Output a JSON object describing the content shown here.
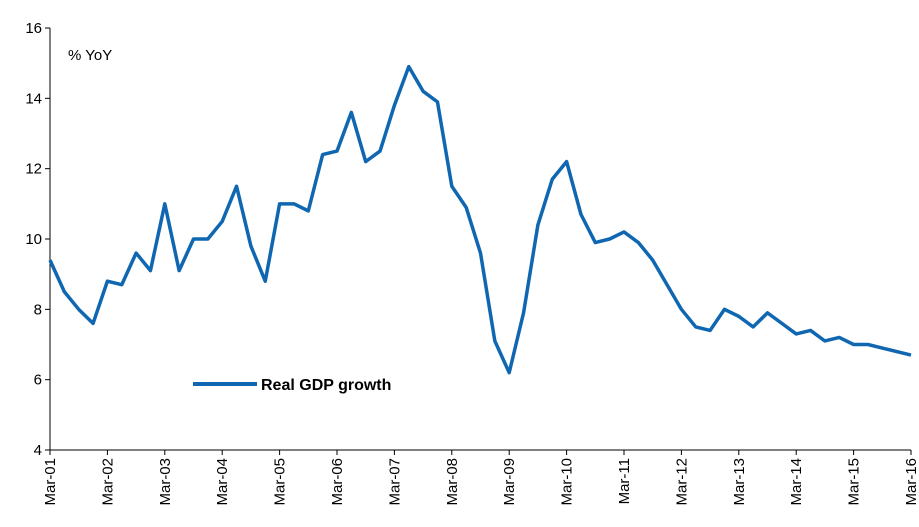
{
  "chart_data": {
    "type": "line",
    "title": "",
    "ylabel": "% YoY",
    "xlabel": "",
    "ylim": [
      4,
      16
    ],
    "yticks": [
      4,
      6,
      8,
      10,
      12,
      14,
      16
    ],
    "xlabels": [
      "Mar-01",
      "Mar-02",
      "Mar-03",
      "Mar-04",
      "Mar-05",
      "Mar-06",
      "Mar-07",
      "Mar-08",
      "Mar-09",
      "Mar-10",
      "Mar-11",
      "Mar-12",
      "Mar-13",
      "Mar-14",
      "Mar-15",
      "Mar-16"
    ],
    "grid": false,
    "legend": "inside, lower-left",
    "series": [
      {
        "name": "Real GDP growth",
        "color": "#0F67B1",
        "x": [
          "Mar-01",
          "Jun-01",
          "Sep-01",
          "Dec-01",
          "Mar-02",
          "Jun-02",
          "Sep-02",
          "Dec-02",
          "Mar-03",
          "Jun-03",
          "Sep-03",
          "Dec-03",
          "Mar-04",
          "Jun-04",
          "Sep-04",
          "Dec-04",
          "Mar-05",
          "Jun-05",
          "Sep-05",
          "Dec-05",
          "Mar-06",
          "Jun-06",
          "Sep-06",
          "Dec-06",
          "Mar-07",
          "Jun-07",
          "Sep-07",
          "Dec-07",
          "Mar-08",
          "Jun-08",
          "Sep-08",
          "Dec-08",
          "Mar-09",
          "Jun-09",
          "Sep-09",
          "Dec-09",
          "Mar-10",
          "Jun-10",
          "Sep-10",
          "Dec-10",
          "Mar-11",
          "Jun-11",
          "Sep-11",
          "Dec-11",
          "Mar-12",
          "Jun-12",
          "Sep-12",
          "Dec-12",
          "Mar-13",
          "Jun-13",
          "Sep-13",
          "Dec-13",
          "Mar-14",
          "Jun-14",
          "Sep-14",
          "Dec-14",
          "Mar-15",
          "Jun-15",
          "Sep-15",
          "Dec-15",
          "Mar-16"
        ],
        "values": [
          9.4,
          8.5,
          8.0,
          7.6,
          8.8,
          8.7,
          9.6,
          9.1,
          11.0,
          9.1,
          10.0,
          10.0,
          10.5,
          11.5,
          9.8,
          8.8,
          11.0,
          11.0,
          10.8,
          12.4,
          12.5,
          13.6,
          12.2,
          12.5,
          13.8,
          14.9,
          14.2,
          13.9,
          11.5,
          10.9,
          9.6,
          7.1,
          6.2,
          7.9,
          10.4,
          11.7,
          12.2,
          10.7,
          9.9,
          10.0,
          10.2,
          9.9,
          9.4,
          8.7,
          8.0,
          7.5,
          7.4,
          8.0,
          7.8,
          7.5,
          7.9,
          7.6,
          7.3,
          7.4,
          7.1,
          7.2,
          7.0,
          7.0,
          6.9,
          6.8,
          6.7
        ]
      }
    ]
  }
}
